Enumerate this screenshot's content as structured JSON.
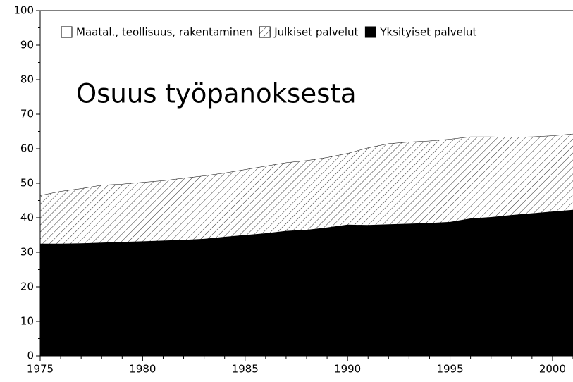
{
  "chart_data": {
    "type": "stacked_area",
    "title": "Osuus työpanoksesta",
    "x": [
      1975,
      1976,
      1977,
      1978,
      1979,
      1980,
      1981,
      1982,
      1983,
      1984,
      1985,
      1986,
      1987,
      1988,
      1989,
      1990,
      1991,
      1992,
      1993,
      1994,
      1995,
      1996,
      1997,
      1998,
      1999,
      2000,
      2001
    ],
    "series": [
      {
        "name": "Maatal., teollisuus, rakentaminen",
        "color": "#ffffff",
        "hatch": false,
        "values": [
          53.5,
          52.3,
          51.5,
          50.5,
          50.2,
          49.7,
          49.2,
          48.5,
          47.8,
          47.0,
          46.0,
          45.0,
          44.0,
          43.4,
          42.5,
          41.3,
          39.7,
          38.5,
          38.0,
          37.7,
          37.2,
          36.5,
          36.5,
          36.6,
          36.5,
          36.2,
          35.7
        ]
      },
      {
        "name": "Julkiset palvelut",
        "color": "#ffffff",
        "hatch": true,
        "values": [
          14.0,
          15.2,
          15.9,
          16.7,
          16.8,
          17.1,
          17.4,
          17.9,
          18.3,
          18.5,
          19.0,
          19.5,
          19.8,
          20.1,
          20.3,
          20.7,
          22.4,
          23.4,
          23.7,
          23.8,
          24.0,
          23.7,
          23.3,
          22.6,
          22.2,
          22.0,
          22.0
        ]
      },
      {
        "name": "Yksityiset palvelut",
        "color": "#000000",
        "hatch": false,
        "values": [
          32.5,
          32.5,
          32.6,
          32.8,
          33.0,
          33.2,
          33.4,
          33.6,
          33.9,
          34.5,
          35.0,
          35.5,
          36.2,
          36.5,
          37.2,
          38.0,
          37.9,
          38.1,
          38.3,
          38.5,
          38.8,
          39.8,
          40.2,
          40.8,
          41.3,
          41.8,
          42.3
        ]
      }
    ],
    "xlim": [
      1975,
      2001
    ],
    "xticks": [
      1975,
      1980,
      1985,
      1990,
      1995,
      2000
    ],
    "xminorticks": [
      1976,
      1977,
      1978,
      1979,
      1981,
      1982,
      1983,
      1984,
      1986,
      1987,
      1988,
      1989,
      1991,
      1992,
      1993,
      1994,
      1996,
      1997,
      1998,
      1999,
      2001
    ],
    "ylim": [
      0,
      100
    ],
    "yticks": [
      0,
      10,
      20,
      30,
      40,
      50,
      60,
      70,
      80,
      90,
      100
    ],
    "yminorticks": [
      5,
      15,
      25,
      35,
      45,
      55,
      65,
      75,
      85,
      95
    ],
    "legend": "top-left"
  }
}
